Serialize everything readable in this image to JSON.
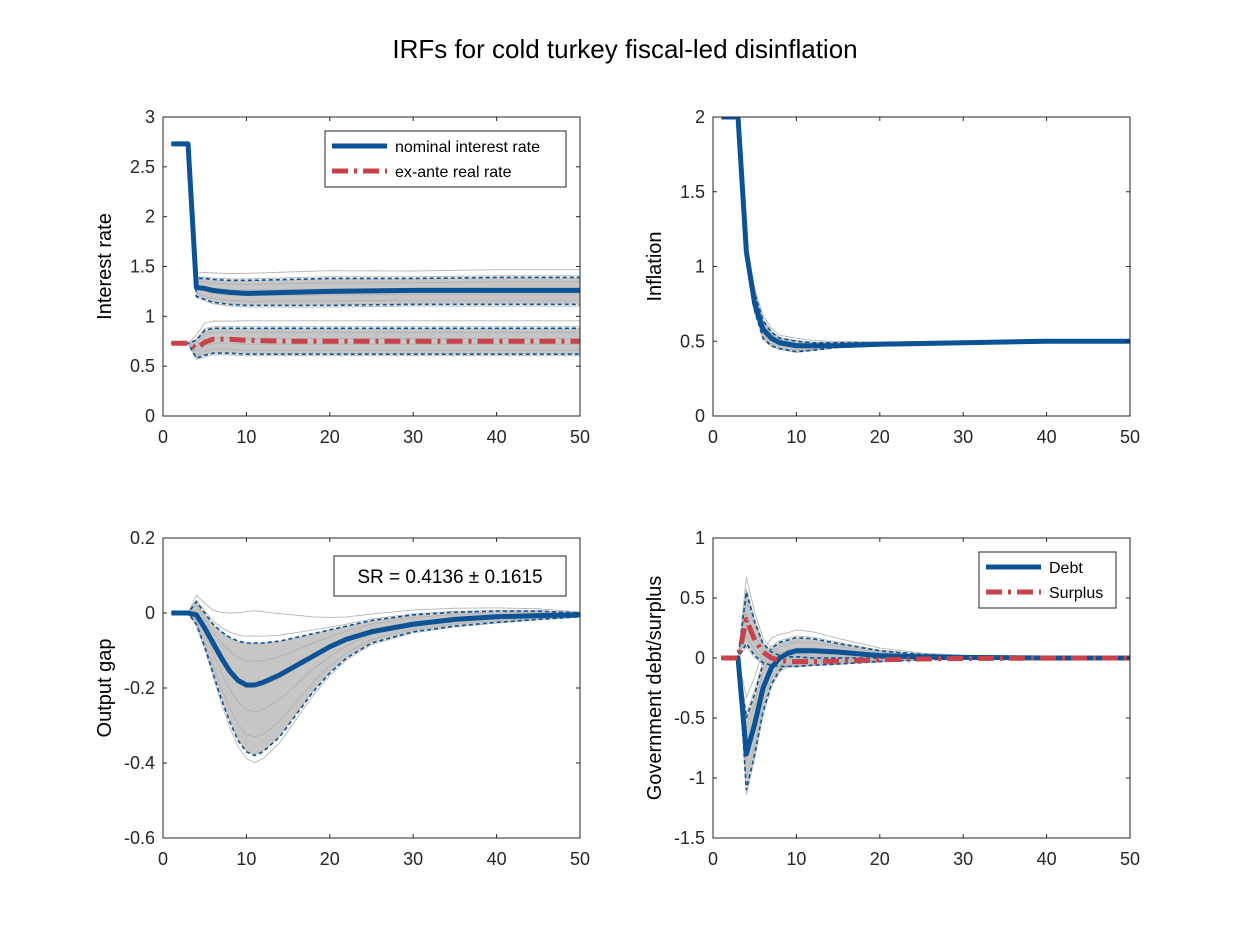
{
  "figure": {
    "title": "IRFs for cold turkey fiscal-led disinflation"
  },
  "colors": {
    "blue": "#0b5394",
    "red": "#c8424b",
    "band": "#c0c0c0",
    "draws": "#b4b4b4",
    "axis": "#262626"
  },
  "chart_data": [
    {
      "type": "line",
      "ylabel": "Interest rate",
      "xlim": [
        0,
        50
      ],
      "ylim": [
        0,
        3
      ],
      "xticks": [
        0,
        10,
        20,
        30,
        40,
        50
      ],
      "xtick_labels": [
        "0",
        "10",
        "20",
        "30",
        "40",
        "50"
      ],
      "yticks": [
        0,
        0.5,
        1,
        1.5,
        2,
        2.5,
        3
      ],
      "ytick_labels": [
        "0",
        "0.5",
        "1",
        "1.5",
        "2",
        "2.5",
        "3"
      ],
      "legend": {
        "placement": "top-right",
        "entries": [
          "nominal interest rate",
          "ex-ante real rate"
        ]
      },
      "series": [
        {
          "name": "nominal interest rate",
          "style": "solid",
          "color": "blue",
          "x": [
            1,
            2,
            3,
            4,
            5,
            6,
            8,
            10,
            15,
            20,
            30,
            40,
            50
          ],
          "y": [
            2.73,
            2.73,
            2.73,
            1.29,
            1.28,
            1.26,
            1.24,
            1.23,
            1.24,
            1.25,
            1.26,
            1.26,
            1.26
          ]
        },
        {
          "name": "ex-ante real rate",
          "style": "dashdot",
          "color": "red",
          "x": [
            1,
            2,
            3,
            4,
            5,
            6,
            8,
            10,
            15,
            20,
            30,
            40,
            50
          ],
          "y": [
            0.73,
            0.73,
            0.73,
            0.68,
            0.74,
            0.77,
            0.77,
            0.76,
            0.75,
            0.75,
            0.75,
            0.75,
            0.75
          ]
        }
      ],
      "bands": [
        {
          "x": [
            1,
            2,
            3,
            4,
            5,
            6,
            8,
            10,
            15,
            20,
            30,
            40,
            50
          ],
          "upper": [
            2.73,
            2.73,
            2.73,
            1.38,
            1.38,
            1.37,
            1.36,
            1.36,
            1.37,
            1.38,
            1.38,
            1.39,
            1.39
          ],
          "lower": [
            2.73,
            2.73,
            2.73,
            1.2,
            1.17,
            1.14,
            1.12,
            1.11,
            1.11,
            1.11,
            1.12,
            1.12,
            1.12
          ]
        },
        {
          "x": [
            1,
            2,
            3,
            4,
            5,
            6,
            8,
            10,
            15,
            20,
            30,
            40,
            50
          ],
          "upper": [
            0.73,
            0.73,
            0.73,
            0.76,
            0.86,
            0.88,
            0.88,
            0.88,
            0.88,
            0.88,
            0.88,
            0.88,
            0.88
          ],
          "lower": [
            0.73,
            0.73,
            0.73,
            0.58,
            0.61,
            0.63,
            0.63,
            0.62,
            0.62,
            0.62,
            0.62,
            0.62,
            0.62
          ]
        }
      ]
    },
    {
      "type": "line",
      "ylabel": "Inflation",
      "xlim": [
        0,
        50
      ],
      "ylim": [
        0,
        2
      ],
      "xticks": [
        0,
        10,
        20,
        30,
        40,
        50
      ],
      "xtick_labels": [
        "0",
        "10",
        "20",
        "30",
        "40",
        "50"
      ],
      "yticks": [
        0,
        0.5,
        1,
        1.5,
        2
      ],
      "ytick_labels": [
        "0",
        "0.5",
        "1",
        "1.5",
        "2"
      ],
      "series": [
        {
          "name": "",
          "style": "solid",
          "color": "blue",
          "x": [
            1,
            2,
            3,
            4,
            5,
            6,
            7,
            8,
            10,
            12,
            15,
            20,
            30,
            40,
            50
          ],
          "y": [
            2.0,
            2.0,
            2.0,
            1.1,
            0.75,
            0.58,
            0.52,
            0.49,
            0.47,
            0.47,
            0.47,
            0.48,
            0.49,
            0.5,
            0.5
          ]
        }
      ],
      "bands": [
        {
          "x": [
            1,
            2,
            3,
            4,
            5,
            6,
            7,
            8,
            10,
            12,
            15,
            20,
            30,
            40,
            50
          ],
          "upper": [
            2.0,
            2.0,
            2.0,
            1.12,
            0.82,
            0.64,
            0.56,
            0.52,
            0.5,
            0.49,
            0.49,
            0.49,
            0.5,
            0.5,
            0.5
          ],
          "lower": [
            2.0,
            2.0,
            2.0,
            1.08,
            0.7,
            0.52,
            0.47,
            0.45,
            0.43,
            0.44,
            0.46,
            0.47,
            0.49,
            0.5,
            0.5
          ]
        }
      ]
    },
    {
      "type": "line",
      "ylabel": "Output gap",
      "xlim": [
        0,
        50
      ],
      "ylim": [
        -0.6,
        0.2
      ],
      "xticks": [
        0,
        10,
        20,
        30,
        40,
        50
      ],
      "xtick_labels": [
        "0",
        "10",
        "20",
        "30",
        "40",
        "50"
      ],
      "yticks": [
        -0.6,
        -0.4,
        -0.2,
        0,
        0.2
      ],
      "ytick_labels": [
        "-0.6",
        "-0.4",
        "-0.2",
        "0",
        "0.2"
      ],
      "annotation": "SR = 0.4136 ± 0.1615",
      "series": [
        {
          "name": "",
          "style": "solid",
          "color": "blue",
          "x": [
            1,
            2,
            3,
            4,
            5,
            6,
            7,
            8,
            9,
            10,
            11,
            12,
            14,
            16,
            18,
            20,
            22,
            25,
            30,
            35,
            40,
            45,
            50
          ],
          "y": [
            0,
            0,
            0,
            -0.005,
            -0.04,
            -0.08,
            -0.12,
            -0.155,
            -0.18,
            -0.192,
            -0.192,
            -0.185,
            -0.165,
            -0.14,
            -0.115,
            -0.09,
            -0.07,
            -0.05,
            -0.03,
            -0.017,
            -0.01,
            -0.007,
            -0.005
          ]
        }
      ],
      "bands": [
        {
          "x": [
            1,
            2,
            3,
            4,
            5,
            6,
            7,
            8,
            9,
            10,
            11,
            12,
            14,
            16,
            18,
            20,
            22,
            25,
            30,
            35,
            40,
            45,
            50
          ],
          "upper": [
            0,
            0,
            0,
            0.03,
            0.0,
            -0.03,
            -0.05,
            -0.065,
            -0.075,
            -0.08,
            -0.08,
            -0.08,
            -0.075,
            -0.065,
            -0.055,
            -0.045,
            -0.035,
            -0.02,
            -0.005,
            0.002,
            0.005,
            0.005,
            0.0
          ],
          "lower": [
            0,
            0,
            0,
            -0.03,
            -0.09,
            -0.16,
            -0.23,
            -0.29,
            -0.34,
            -0.37,
            -0.38,
            -0.37,
            -0.33,
            -0.27,
            -0.21,
            -0.16,
            -0.12,
            -0.08,
            -0.05,
            -0.035,
            -0.025,
            -0.017,
            -0.01
          ]
        }
      ]
    },
    {
      "type": "line",
      "ylabel": "Government debt/surplus",
      "xlim": [
        0,
        50
      ],
      "ylim": [
        -1.5,
        1
      ],
      "xticks": [
        0,
        10,
        20,
        30,
        40,
        50
      ],
      "xtick_labels": [
        "0",
        "10",
        "20",
        "30",
        "40",
        "50"
      ],
      "yticks": [
        -1.5,
        -1,
        -0.5,
        0,
        0.5,
        1
      ],
      "ytick_labels": [
        "-1.5",
        "-1",
        "-0.5",
        "0",
        "0.5",
        "1"
      ],
      "legend": {
        "placement": "top-right",
        "entries": [
          "Debt",
          "Surplus"
        ]
      },
      "series": [
        {
          "name": "Debt",
          "style": "solid",
          "color": "blue",
          "x": [
            1,
            2,
            3,
            4,
            5,
            6,
            7,
            8,
            9,
            10,
            12,
            15,
            20,
            25,
            30,
            40,
            50
          ],
          "y": [
            0,
            0,
            0,
            -0.8,
            -0.55,
            -0.25,
            -0.08,
            0.0,
            0.04,
            0.06,
            0.06,
            0.05,
            0.02,
            0.01,
            0.005,
            0.0,
            0.0
          ]
        },
        {
          "name": "Surplus",
          "style": "dashdot",
          "color": "red",
          "x": [
            1,
            2,
            3,
            4,
            5,
            6,
            7,
            8,
            9,
            10,
            12,
            15,
            20,
            25,
            30,
            40,
            50
          ],
          "y": [
            0,
            0,
            0,
            0.32,
            0.15,
            0.05,
            0.0,
            -0.02,
            -0.03,
            -0.03,
            -0.03,
            -0.025,
            -0.015,
            -0.008,
            -0.004,
            -0.001,
            0.0
          ]
        }
      ],
      "bands": [
        {
          "x": [
            1,
            2,
            3,
            4,
            5,
            6,
            7,
            8,
            9,
            10,
            12,
            15,
            20,
            25,
            30,
            40,
            50
          ],
          "upper": [
            0,
            0,
            0,
            -0.5,
            -0.3,
            -0.05,
            0.08,
            0.13,
            0.15,
            0.17,
            0.16,
            0.12,
            0.06,
            0.03,
            0.015,
            0.005,
            0.0
          ],
          "lower": [
            0,
            0,
            0,
            -1.1,
            -0.8,
            -0.45,
            -0.22,
            -0.1,
            -0.06,
            -0.05,
            -0.04,
            -0.03,
            -0.02,
            -0.01,
            -0.005,
            -0.002,
            0.0
          ]
        },
        {
          "x": [
            1,
            2,
            3,
            4,
            5,
            6,
            7,
            8,
            9,
            10,
            12,
            15,
            20,
            25,
            30,
            40,
            50
          ],
          "upper": [
            0,
            0,
            0,
            0.55,
            0.3,
            0.12,
            0.05,
            0.02,
            0.01,
            0.01,
            0.0,
            0.0,
            0.0,
            0.0,
            0.0,
            0.0,
            0.0
          ],
          "lower": [
            0,
            0,
            0,
            0.12,
            0.02,
            -0.04,
            -0.06,
            -0.07,
            -0.07,
            -0.07,
            -0.06,
            -0.05,
            -0.03,
            -0.015,
            -0.008,
            -0.002,
            0.0
          ]
        }
      ]
    }
  ]
}
